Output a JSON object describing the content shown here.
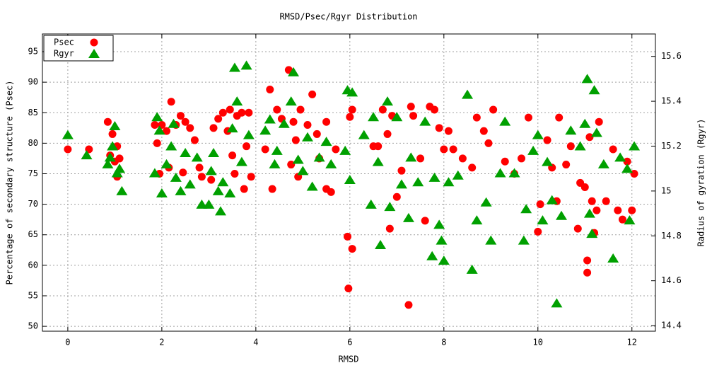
{
  "chart_data": {
    "type": "scatter",
    "title": "RMSD/Psec/Rgyr Distribution",
    "xlabel": "RMSD",
    "ylabel": "Percentage of secondary structure (Psec)",
    "y2label": "Radius of gyration (Rgyr)",
    "xlim": [
      -0.54,
      12.5
    ],
    "ylim": [
      49.2,
      97.9
    ],
    "y2lim": [
      14.375,
      15.7
    ],
    "xticks": [
      0,
      2,
      4,
      6,
      8,
      10,
      12
    ],
    "yticks": [
      50,
      55,
      60,
      65,
      70,
      75,
      80,
      85,
      90,
      95
    ],
    "y2ticks": [
      14.4,
      14.6,
      14.8,
      15,
      15.2,
      15.4,
      15.6
    ],
    "grid": true,
    "legend": "top-left",
    "series": [
      {
        "name": "Psec",
        "color": "#ff0000",
        "marker": "circle",
        "x": [
          0,
          0.45,
          0.85,
          0.9,
          0.95,
          1.0,
          1.05,
          1.1,
          1.05,
          1.85,
          1.9,
          1.95,
          2.0,
          2.1,
          2.15,
          2.2,
          2.3,
          2.4,
          2.45,
          2.5,
          2.6,
          2.7,
          2.8,
          2.85,
          3.05,
          3.1,
          3.2,
          3.3,
          3.4,
          3.45,
          3.5,
          3.55,
          3.6,
          3.7,
          3.75,
          3.8,
          3.85,
          3.9,
          4.2,
          4.3,
          4.35,
          4.45,
          4.55,
          4.7,
          4.75,
          4.8,
          4.85,
          4.9,
          4.95,
          5.1,
          5.2,
          5.3,
          5.35,
          5.5,
          5.5,
          5.6,
          5.7,
          5.95,
          5.97,
          6.0,
          6.05,
          6.05,
          6.5,
          6.6,
          6.7,
          6.8,
          6.85,
          6.9,
          7.0,
          7.1,
          7.25,
          7.3,
          7.35,
          7.5,
          7.6,
          7.7,
          7.8,
          7.9,
          8.0,
          8.1,
          8.2,
          8.4,
          8.6,
          8.7,
          8.85,
          8.95,
          9.05,
          9.3,
          9.5,
          9.65,
          9.8,
          10.0,
          10.05,
          10.2,
          10.3,
          10.4,
          10.45,
          10.6,
          10.7,
          10.85,
          10.9,
          11.0,
          11.05,
          11.05,
          11.1,
          11.15,
          11.2,
          11.25,
          11.3,
          11.45,
          11.6,
          11.7,
          11.8,
          11.9,
          12.0,
          12.05
        ],
        "values": [
          79,
          79,
          83.5,
          78,
          81.5,
          77,
          74.5,
          77.5,
          79.5,
          83,
          80,
          75,
          83,
          82,
          76,
          86.8,
          83,
          84.5,
          75.2,
          83.5,
          82.5,
          80.5,
          76,
          74.5,
          74,
          82.5,
          84,
          85,
          82,
          85.5,
          78,
          75,
          84.5,
          85,
          72.5,
          79.5,
          85,
          74.5,
          79,
          88.8,
          72.5,
          85.5,
          84,
          92,
          76.5,
          83.5,
          80.5,
          74.5,
          85.5,
          83,
          88,
          81.5,
          77.5,
          83.5,
          72.5,
          72,
          79,
          64.7,
          56.2,
          84.3,
          85.5,
          62.7,
          79.5,
          79.5,
          85.5,
          81.5,
          66,
          84.5,
          71.2,
          75.5,
          53.5,
          86,
          84.5,
          77.5,
          67.3,
          86,
          85.5,
          82.5,
          79,
          82,
          79,
          77.5,
          76,
          84.2,
          82,
          80,
          85.5,
          77,
          75,
          77.5,
          84.2,
          65.5,
          70,
          80.5,
          76,
          70.5,
          84.2,
          76.5,
          79.5,
          66,
          73.5,
          72.8,
          58.8,
          60.8,
          81,
          70.5,
          65.3,
          69,
          83.5,
          70.5,
          79,
          69,
          67.5,
          77,
          69,
          75
        ]
      },
      {
        "name": "Rgyr",
        "color": "#00a000",
        "marker": "triangle",
        "axis": "y2",
        "x": [
          0,
          0.4,
          0.85,
          0.9,
          0.95,
          1.0,
          1.05,
          1.1,
          1.15,
          1.85,
          1.9,
          1.95,
          2.0,
          2.1,
          2.2,
          2.25,
          2.3,
          2.4,
          2.5,
          2.6,
          2.75,
          2.85,
          3.0,
          3.05,
          3.1,
          3.2,
          3.25,
          3.3,
          3.45,
          3.5,
          3.55,
          3.6,
          3.7,
          3.8,
          3.85,
          4.2,
          4.3,
          4.4,
          4.45,
          4.6,
          4.75,
          4.8,
          4.9,
          5.0,
          5.1,
          5.2,
          5.35,
          5.5,
          5.6,
          5.9,
          5.95,
          6.0,
          6.05,
          6.3,
          6.45,
          6.5,
          6.6,
          6.65,
          6.8,
          6.85,
          7.0,
          7.1,
          7.25,
          7.3,
          7.45,
          7.6,
          7.75,
          7.8,
          7.9,
          7.95,
          8.0,
          8.1,
          8.3,
          8.5,
          8.6,
          8.7,
          8.9,
          9.0,
          9.2,
          9.3,
          9.5,
          9.7,
          9.75,
          9.9,
          10.0,
          10.1,
          10.2,
          10.3,
          10.4,
          10.5,
          10.7,
          10.9,
          11.0,
          11.05,
          11.1,
          11.15,
          11.2,
          11.25,
          11.4,
          11.6,
          11.75,
          11.9,
          11.95,
          12.05
        ],
        "values": [
          15.25,
          15.16,
          15.12,
          15.15,
          15.2,
          15.29,
          15.08,
          15.1,
          15.0,
          15.08,
          15.33,
          15.27,
          14.99,
          15.12,
          15.2,
          15.3,
          15.06,
          15.0,
          15.17,
          15.03,
          15.15,
          14.94,
          14.94,
          15.09,
          15.17,
          15.0,
          14.91,
          15.04,
          14.99,
          15.28,
          15.55,
          15.4,
          15.13,
          15.56,
          15.25,
          15.27,
          15.32,
          15.12,
          15.18,
          15.3,
          15.4,
          15.53,
          15.14,
          15.09,
          15.24,
          15.02,
          15.15,
          15.22,
          15.12,
          15.18,
          15.45,
          15.05,
          15.44,
          15.25,
          14.94,
          15.33,
          15.13,
          14.76,
          15.4,
          14.93,
          15.33,
          15.03,
          14.88,
          15.15,
          15.04,
          15.31,
          14.71,
          15.06,
          14.85,
          14.78,
          14.69,
          15.04,
          15.07,
          15.43,
          14.65,
          14.87,
          14.95,
          14.78,
          15.08,
          15.31,
          15.08,
          14.78,
          14.92,
          15.18,
          15.25,
          14.87,
          15.13,
          14.96,
          14.5,
          14.89,
          15.27,
          15.2,
          15.3,
          15.5,
          14.9,
          14.81,
          15.45,
          15.26,
          15.12,
          14.7,
          15.15,
          15.1,
          14.87,
          15.2
        ]
      }
    ]
  }
}
